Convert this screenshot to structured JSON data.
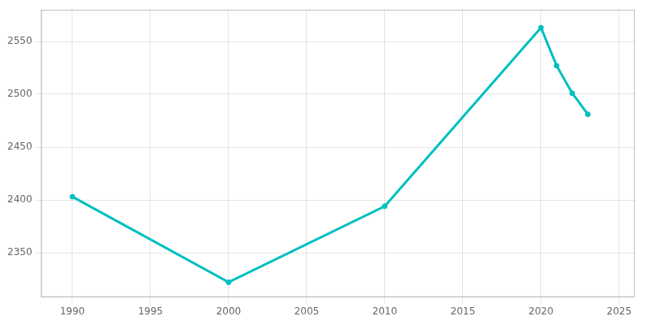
{
  "chart_data": {
    "type": "line",
    "x": [
      1990,
      2000,
      2010,
      2020,
      2021,
      2022,
      2023
    ],
    "values": [
      2403,
      2322,
      2394,
      2563,
      2527,
      2501,
      2481
    ],
    "color": "#00BFBF",
    "marker": "circle",
    "line_style": "solid",
    "xlim": [
      1988,
      2026
    ],
    "ylim": [
      2308,
      2580
    ],
    "xticks": [
      1990,
      1995,
      2000,
      2005,
      2010,
      2015,
      2020,
      2025
    ],
    "yticks": [
      2350,
      2400,
      2450,
      2500,
      2550
    ],
    "grid": true
  }
}
